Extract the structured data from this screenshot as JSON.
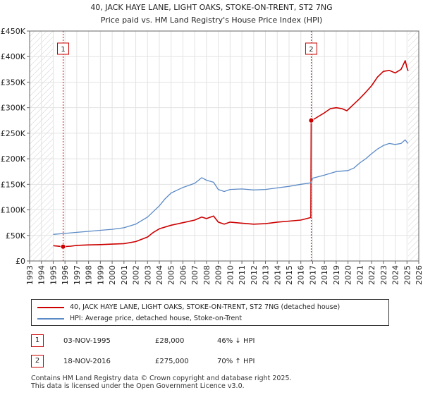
{
  "chart_data": {
    "type": "line",
    "title": "40, JACK HAYE LANE, LIGHT OAKS, STOKE-ON-TRENT, ST2 7NG",
    "subtitle": "Price paid vs. HM Land Registry's House Price Index (HPI)",
    "xlabel": "",
    "ylabel": "",
    "xlim": [
      1993,
      2026
    ],
    "ylim": [
      0,
      450000
    ],
    "x_ticks": [
      "1993",
      "1994",
      "1995",
      "1996",
      "1997",
      "1998",
      "1999",
      "2000",
      "2001",
      "2002",
      "2003",
      "2004",
      "2005",
      "2006",
      "2007",
      "2008",
      "2009",
      "2010",
      "2011",
      "2012",
      "2013",
      "2014",
      "2015",
      "2016",
      "2017",
      "2018",
      "2019",
      "2020",
      "2021",
      "2022",
      "2023",
      "2024",
      "2025",
      "2026"
    ],
    "y_ticks": [
      {
        "value": 0,
        "label": "£0"
      },
      {
        "value": 50000,
        "label": "£50K"
      },
      {
        "value": 100000,
        "label": "£100K"
      },
      {
        "value": 150000,
        "label": "£150K"
      },
      {
        "value": 200000,
        "label": "£200K"
      },
      {
        "value": 250000,
        "label": "£250K"
      },
      {
        "value": 300000,
        "label": "£300K"
      },
      {
        "value": 350000,
        "label": "£350K"
      },
      {
        "value": 400000,
        "label": "£400K"
      },
      {
        "value": 450000,
        "label": "£450K"
      }
    ],
    "grid": true,
    "hatched_ranges": [
      [
        1993,
        1995
      ],
      [
        2025.1,
        2026
      ]
    ],
    "series": [
      {
        "name": "40, JACK HAYE LANE, LIGHT OAKS, STOKE-ON-TRENT, ST2 7NG (detached house)",
        "color": "#cc0000",
        "x": [
          1995.0,
          1995.84,
          1996.5,
          1997,
          1998,
          1999,
          2000,
          2001,
          2002,
          2003,
          2003.5,
          2004,
          2005,
          2006,
          2007,
          2007.6,
          2008,
          2008.6,
          2009,
          2009.5,
          2010,
          2011,
          2012,
          2013,
          2014,
          2015,
          2016,
          2016.85,
          2016.88,
          2017,
          2017.5,
          2018,
          2018.5,
          2019,
          2019.5,
          2019.9,
          2020.5,
          2021,
          2021.5,
          2022,
          2022.5,
          2023,
          2023.5,
          2024,
          2024.5,
          2024.85,
          2025.0,
          2025.1
        ],
        "values": [
          30000,
          28000,
          29000,
          30500,
          31500,
          32000,
          33000,
          34000,
          38000,
          47000,
          56000,
          63000,
          70000,
          75000,
          80000,
          86000,
          83000,
          88000,
          76000,
          72000,
          76000,
          74000,
          72000,
          73000,
          76000,
          78000,
          80000,
          85000,
          275000,
          276000,
          283000,
          290000,
          298000,
          300000,
          298000,
          294000,
          307000,
          318000,
          330000,
          343000,
          360000,
          371000,
          373000,
          368000,
          375000,
          392000,
          378000,
          372000
        ]
      },
      {
        "name": "HPI: Average price, detached house, Stoke-on-Trent",
        "color": "#5b8ac6",
        "x": [
          1995,
          1996,
          1997,
          1998,
          1999,
          2000,
          2001,
          2002,
          2003,
          2004,
          2004.5,
          2005,
          2006,
          2007,
          2007.6,
          2008,
          2008.6,
          2009,
          2009.5,
          2010,
          2011,
          2012,
          2013,
          2014,
          2015,
          2016,
          2016.85,
          2017,
          2018,
          2019,
          2020,
          2020.5,
          2021,
          2021.5,
          2022,
          2022.5,
          2023,
          2023.5,
          2024,
          2024.5,
          2024.85,
          2025.0,
          2025.1
        ],
        "values": [
          52000,
          54000,
          56000,
          58000,
          60000,
          62000,
          65000,
          72000,
          86000,
          108000,
          122000,
          133000,
          144000,
          152000,
          163000,
          158000,
          154000,
          140000,
          136000,
          140000,
          141000,
          139000,
          140000,
          143000,
          146000,
          150000,
          153000,
          162000,
          168000,
          175000,
          177000,
          182000,
          192000,
          200000,
          210000,
          219000,
          226000,
          230000,
          228000,
          230000,
          237000,
          232000,
          230000
        ]
      }
    ],
    "annotations": [
      {
        "label": "1",
        "x": 1995.84,
        "value": 28000
      },
      {
        "label": "2",
        "x": 2016.88,
        "value": 275000
      }
    ]
  },
  "legend": {
    "items": [
      {
        "label": "40, JACK HAYE LANE, LIGHT OAKS, STOKE-ON-TRENT, ST2 7NG (detached house)",
        "color": "#cc0000"
      },
      {
        "label": "HPI: Average price, detached house, Stoke-on-Trent",
        "color": "#5b8ac6"
      }
    ]
  },
  "transactions": [
    {
      "badge": "1",
      "date": "03-NOV-1995",
      "price": "£28,000",
      "hpi": "46% ↓ HPI"
    },
    {
      "badge": "2",
      "date": "18-NOV-2016",
      "price": "£275,000",
      "hpi": "70% ↑ HPI"
    }
  ],
  "footer": {
    "line1": "Contains HM Land Registry data © Crown copyright and database right 2025.",
    "line2": "This data is licensed under the Open Government Licence v3.0."
  }
}
